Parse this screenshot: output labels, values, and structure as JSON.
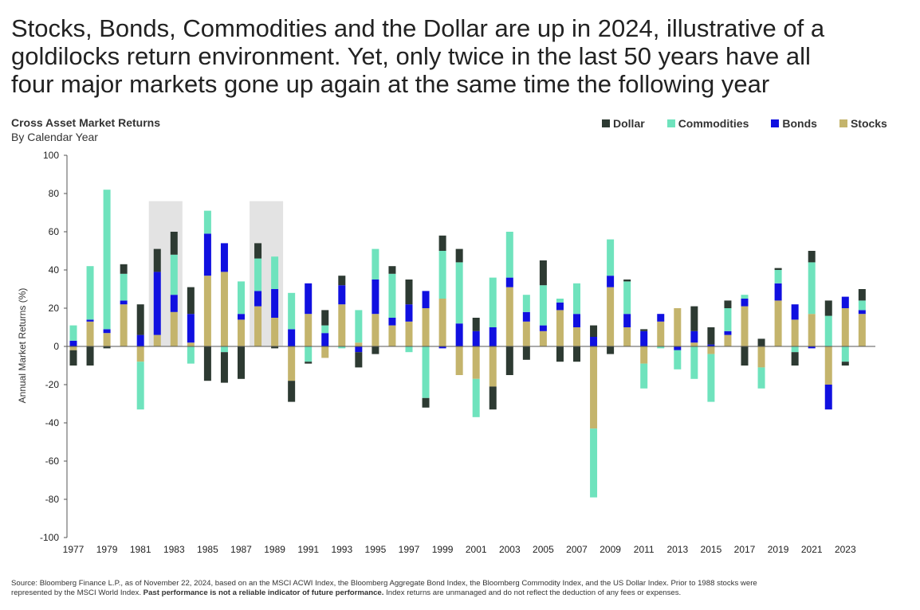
{
  "headline": {
    "line1": "Stocks, Bonds, Commodities and the Dollar are up in 2024, illustrative of a",
    "line2": "goldilocks return environment.  Yet, only twice in the last 50 years have all",
    "line3": "four major markets gone up again at the same time the following year"
  },
  "footnote": {
    "source_line1": "Source: Bloomberg Finance L.P., as of November 22, 2024, based on an the MSCI ACWI Index, the Bloomberg Aggregate Bond Index, the Bloomberg Commodity Index, and the US Dollar Index. Prior to 1988 stocks were",
    "source_line2_start": "represented by the MSCI World Index. ",
    "source_bold": "Past performance is not a reliable indicator of future performance.",
    "source_line2_end": " Index returns are unmanaged and do not reflect the deduction of any fees or expenses."
  },
  "colors": {
    "Dollar": "#2d3a32",
    "Commodities": "#6fe3bd",
    "Bonds": "#1010e0",
    "Stocks": "#c4b46c",
    "highlight": "#e3e3e3",
    "axis": "#555555"
  },
  "chart_data": {
    "type": "bar",
    "stacked": true,
    "title": "Cross Asset Market Returns",
    "subtitle": "By Calendar Year",
    "ylabel": "Annual Market Returns (%)",
    "ylim": [
      -100,
      100
    ],
    "yticks": [
      100,
      80,
      60,
      40,
      20,
      0,
      -20,
      -40,
      -60,
      -80,
      -100
    ],
    "legend_position": "top-right",
    "legend_order": [
      "Dollar",
      "Commodities",
      "Bonds",
      "Stocks"
    ],
    "highlight_years": [
      [
        1982,
        1983
      ],
      [
        1988,
        1989
      ]
    ],
    "x": [
      1977,
      1978,
      1979,
      1980,
      1981,
      1982,
      1983,
      1984,
      1985,
      1986,
      1987,
      1988,
      1989,
      1990,
      1991,
      1992,
      1993,
      1994,
      1995,
      1996,
      1997,
      1998,
      1999,
      2000,
      2001,
      2002,
      2003,
      2004,
      2005,
      2006,
      2007,
      2008,
      2009,
      2010,
      2011,
      2012,
      2013,
      2014,
      2015,
      2016,
      2017,
      2018,
      2019,
      2020,
      2021,
      2022,
      2023,
      2024
    ],
    "xtick_labels": [
      "1977",
      "1979",
      "1981",
      "1983",
      "1985",
      "1987",
      "1989",
      "1991",
      "1993",
      "1995",
      "1997",
      "1999",
      "2001",
      "2003",
      "2005",
      "2007",
      "2009",
      "2011",
      "2013",
      "2015",
      "2017",
      "2019",
      "2021",
      "2023"
    ],
    "series": [
      {
        "name": "Stocks",
        "values": [
          -2,
          13,
          7,
          22,
          -8,
          6,
          18,
          2,
          37,
          39,
          14,
          21,
          15,
          -18,
          17,
          -6,
          22,
          2,
          17,
          11,
          13,
          20,
          25,
          -15,
          -17,
          -21,
          31,
          13,
          8,
          19,
          10,
          -43,
          31,
          10,
          -9,
          13,
          20,
          2,
          -4,
          6,
          21,
          -11,
          24,
          14,
          17,
          -20,
          20,
          17
        ]
      },
      {
        "name": "Bonds",
        "values": [
          3,
          1,
          2,
          2,
          6,
          33,
          9,
          15,
          22,
          15,
          3,
          8,
          15,
          9,
          16,
          7,
          10,
          -3,
          18,
          4,
          9,
          9,
          -1,
          12,
          8,
          10,
          5,
          5,
          3,
          4,
          7,
          5,
          6,
          7,
          8,
          4,
          -2,
          6,
          1,
          2,
          4,
          0,
          9,
          8,
          -1,
          -13,
          6,
          2
        ]
      },
      {
        "name": "Commodities",
        "values": [
          8,
          28,
          73,
          14,
          -25,
          0,
          21,
          -9,
          12,
          -3,
          17,
          17,
          17,
          19,
          -8,
          4,
          -1,
          17,
          16,
          23,
          -3,
          -27,
          25,
          32,
          -20,
          26,
          24,
          9,
          21,
          2,
          16,
          -36,
          19,
          17,
          -13,
          -1,
          -10,
          -17,
          -25,
          12,
          2,
          -11,
          7,
          -3,
          27,
          16,
          -8,
          5
        ]
      },
      {
        "name": "Dollar",
        "values": [
          -8,
          -10,
          -1,
          5,
          16,
          12,
          12,
          14,
          -18,
          -16,
          -17,
          8,
          -1,
          -11,
          -1,
          8,
          5,
          -8,
          -4,
          4,
          13,
          -5,
          8,
          7,
          7,
          -12,
          -15,
          -7,
          13,
          -8,
          -8,
          6,
          -4,
          1,
          1,
          0,
          0,
          13,
          9,
          4,
          -10,
          4,
          1,
          -7,
          6,
          8,
          -2,
          6
        ]
      }
    ]
  }
}
